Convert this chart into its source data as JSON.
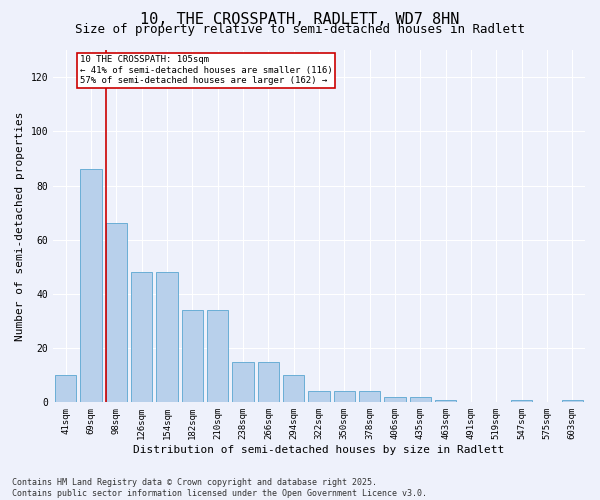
{
  "title": "10, THE CROSSPATH, RADLETT, WD7 8HN",
  "subtitle": "Size of property relative to semi-detached houses in Radlett",
  "xlabel": "Distribution of semi-detached houses by size in Radlett",
  "ylabel": "Number of semi-detached properties",
  "categories": [
    "41sqm",
    "69sqm",
    "98sqm",
    "126sqm",
    "154sqm",
    "182sqm",
    "210sqm",
    "238sqm",
    "266sqm",
    "294sqm",
    "322sqm",
    "350sqm",
    "378sqm",
    "406sqm",
    "435sqm",
    "463sqm",
    "491sqm",
    "519sqm",
    "547sqm",
    "575sqm",
    "603sqm"
  ],
  "values": [
    10,
    86,
    66,
    48,
    48,
    34,
    34,
    15,
    15,
    10,
    4,
    4,
    4,
    2,
    2,
    1,
    0,
    0,
    1,
    0,
    1
  ],
  "bar_color": "#b8d0eb",
  "bar_edge_color": "#6aaed6",
  "ylim": [
    0,
    130
  ],
  "yticks": [
    0,
    20,
    40,
    60,
    80,
    100,
    120
  ],
  "vline_x_index": 2,
  "vline_color": "#cc0000",
  "annotation_title": "10 THE CROSSPATH: 105sqm",
  "annotation_line1": "← 41% of semi-detached houses are smaller (116)",
  "annotation_line2": "57% of semi-detached houses are larger (162) →",
  "footer1": "Contains HM Land Registry data © Crown copyright and database right 2025.",
  "footer2": "Contains public sector information licensed under the Open Government Licence v3.0.",
  "title_fontsize": 11,
  "subtitle_fontsize": 9,
  "tick_fontsize": 6.5,
  "axis_label_fontsize": 8,
  "footer_fontsize": 6,
  "background_color": "#eef1fb"
}
